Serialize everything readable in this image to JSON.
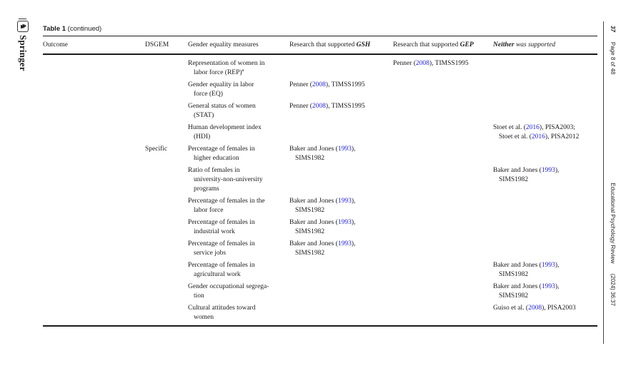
{
  "page": {
    "background": "#ffffff",
    "link_color": "#2222dd",
    "rule_color": "#1b1b1b"
  },
  "left_sidebar": {
    "publisher": "Springer",
    "logo_icon": "springer-knight-logo",
    "logo_glyph": "♞"
  },
  "right_sidebar": {
    "page_number": "37",
    "page_info": "Page 8 of 48",
    "journal": "Educational Psychology Review",
    "volume_ref": "(2024) 36:37"
  },
  "table": {
    "title_bold": "Table 1",
    "title_rest": "(continued)",
    "columns": [
      {
        "key": "outcome",
        "segs": [
          {
            "t": "Outcome"
          }
        ]
      },
      {
        "key": "dsgem",
        "segs": [
          {
            "t": "DSGEM"
          }
        ]
      },
      {
        "key": "measure",
        "segs": [
          {
            "t": "Gender equality measures"
          }
        ]
      },
      {
        "key": "gsh",
        "segs": [
          {
            "t": "Research that supported "
          },
          {
            "t": "GSH",
            "style": "bi"
          }
        ]
      },
      {
        "key": "gep",
        "segs": [
          {
            "t": "Research that supported "
          },
          {
            "t": "GEP",
            "style": "bi"
          }
        ]
      },
      {
        "key": "neither",
        "segs": [
          {
            "t": "Neither",
            "style": "bi"
          },
          {
            "t": " was supported",
            "style": "i"
          }
        ]
      }
    ],
    "rows": [
      {
        "outcome": [],
        "dsgem": [],
        "measure": [
          [
            {
              "t": "Representation of women in"
            }
          ],
          [
            {
              "t": "labor force (REP)"
            },
            {
              "t": "a",
              "style": "sup"
            }
          ]
        ],
        "gsh": [],
        "gep": [
          [
            {
              "t": "Penner ("
            },
            {
              "t": "2008",
              "style": "link"
            },
            {
              "t": "), TIMSS1995"
            }
          ]
        ],
        "neither": []
      },
      {
        "outcome": [],
        "dsgem": [],
        "measure": [
          [
            {
              "t": "Gender equality in labor"
            }
          ],
          [
            {
              "t": "force (EQ)"
            }
          ]
        ],
        "gsh": [
          [
            {
              "t": "Penner ("
            },
            {
              "t": "2008",
              "style": "link"
            },
            {
              "t": "), TIMSS1995"
            }
          ]
        ],
        "gep": [],
        "neither": []
      },
      {
        "outcome": [],
        "dsgem": [],
        "measure": [
          [
            {
              "t": "General status of women"
            }
          ],
          [
            {
              "t": "(STAT)"
            }
          ]
        ],
        "gsh": [
          [
            {
              "t": "Penner ("
            },
            {
              "t": "2008",
              "style": "link"
            },
            {
              "t": "), TIMSS1995"
            }
          ]
        ],
        "gep": [],
        "neither": []
      },
      {
        "outcome": [],
        "dsgem": [],
        "measure": [
          [
            {
              "t": "Human development index"
            }
          ],
          [
            {
              "t": "(HDI)"
            }
          ]
        ],
        "gsh": [],
        "gep": [],
        "neither": [
          [
            {
              "t": "Stoet et al. ("
            },
            {
              "t": "2016",
              "style": "link"
            },
            {
              "t": "), PISA2003;"
            }
          ],
          [
            {
              "t": "Stoet et al. ("
            },
            {
              "t": "2016",
              "style": "link"
            },
            {
              "t": "), PISA2012"
            }
          ]
        ]
      },
      {
        "outcome": [],
        "dsgem": [
          [
            {
              "t": "Specific"
            }
          ]
        ],
        "measure": [
          [
            {
              "t": "Percentage of females in"
            }
          ],
          [
            {
              "t": "higher education"
            }
          ]
        ],
        "gsh": [
          [
            {
              "t": "Baker and Jones ("
            },
            {
              "t": "1993",
              "style": "link"
            },
            {
              "t": "),"
            }
          ],
          [
            {
              "t": "SIMS1982"
            }
          ]
        ],
        "gep": [],
        "neither": []
      },
      {
        "outcome": [],
        "dsgem": [],
        "measure": [
          [
            {
              "t": "Ratio of females in"
            }
          ],
          [
            {
              "t": "university-non-university"
            }
          ],
          [
            {
              "t": "programs"
            }
          ]
        ],
        "gsh": [],
        "gep": [],
        "neither": [
          [
            {
              "t": "Baker and Jones ("
            },
            {
              "t": "1993",
              "style": "link"
            },
            {
              "t": "),"
            }
          ],
          [
            {
              "t": "SIMS1982"
            }
          ]
        ]
      },
      {
        "outcome": [],
        "dsgem": [],
        "measure": [
          [
            {
              "t": "Percentage of females in the"
            }
          ],
          [
            {
              "t": "labor force"
            }
          ]
        ],
        "gsh": [
          [
            {
              "t": "Baker and Jones ("
            },
            {
              "t": "1993",
              "style": "link"
            },
            {
              "t": "),"
            }
          ],
          [
            {
              "t": "SIMS1982"
            }
          ]
        ],
        "gep": [],
        "neither": []
      },
      {
        "outcome": [],
        "dsgem": [],
        "measure": [
          [
            {
              "t": "Percentage of females in"
            }
          ],
          [
            {
              "t": "industrial work"
            }
          ]
        ],
        "gsh": [
          [
            {
              "t": "Baker and Jones ("
            },
            {
              "t": "1993",
              "style": "link"
            },
            {
              "t": "),"
            }
          ],
          [
            {
              "t": "SIMS1982"
            }
          ]
        ],
        "gep": [],
        "neither": []
      },
      {
        "outcome": [],
        "dsgem": [],
        "measure": [
          [
            {
              "t": "Percentage of females in"
            }
          ],
          [
            {
              "t": "service jobs"
            }
          ]
        ],
        "gsh": [
          [
            {
              "t": "Baker and Jones ("
            },
            {
              "t": "1993",
              "style": "link"
            },
            {
              "t": "),"
            }
          ],
          [
            {
              "t": "SIMS1982"
            }
          ]
        ],
        "gep": [],
        "neither": []
      },
      {
        "outcome": [],
        "dsgem": [],
        "measure": [
          [
            {
              "t": "Percentage of females in"
            }
          ],
          [
            {
              "t": "agricultural work"
            }
          ]
        ],
        "gsh": [],
        "gep": [],
        "neither": [
          [
            {
              "t": "Baker and Jones ("
            },
            {
              "t": "1993",
              "style": "link"
            },
            {
              "t": "),"
            }
          ],
          [
            {
              "t": "SIMS1982"
            }
          ]
        ]
      },
      {
        "outcome": [],
        "dsgem": [],
        "measure": [
          [
            {
              "t": "Gender occupational segrega-"
            }
          ],
          [
            {
              "t": "tion"
            }
          ]
        ],
        "gsh": [],
        "gep": [],
        "neither": [
          [
            {
              "t": "Baker and Jones ("
            },
            {
              "t": "1993",
              "style": "link"
            },
            {
              "t": "),"
            }
          ],
          [
            {
              "t": "SIMS1982"
            }
          ]
        ]
      },
      {
        "outcome": [],
        "dsgem": [],
        "measure": [
          [
            {
              "t": "Cultural attitudes toward"
            }
          ],
          [
            {
              "t": "women"
            }
          ]
        ],
        "gsh": [],
        "gep": [],
        "neither": [
          [
            {
              "t": "Guiso et al. ("
            },
            {
              "t": "2008",
              "style": "link"
            },
            {
              "t": "), PISA2003"
            }
          ]
        ]
      }
    ]
  }
}
